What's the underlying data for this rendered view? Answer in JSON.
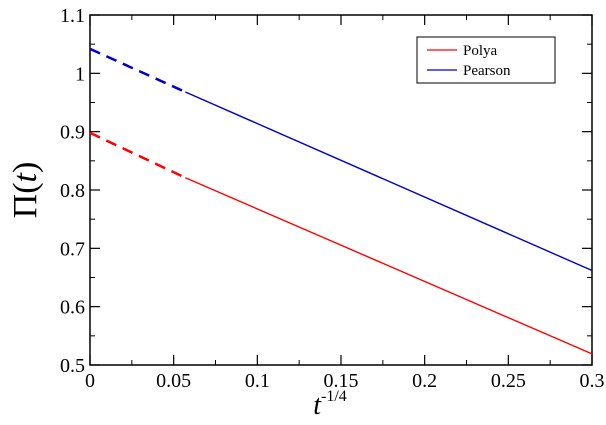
{
  "chart_data": {
    "type": "line",
    "xlabel_base": "t",
    "xlabel_sup": "-1/4",
    "ylabel_pi": "Π",
    "ylabel_open": "(",
    "ylabel_var": "t",
    "ylabel_close": ")",
    "xlim": [
      0,
      0.3
    ],
    "ylim": [
      0.5,
      1.1
    ],
    "xticks": [
      0,
      0.05,
      0.1,
      0.15,
      0.2,
      0.25,
      0.3
    ],
    "xtick_labels": [
      "0",
      "0.05",
      "0.1",
      "0.15",
      "0.2",
      "0.25",
      "0.3"
    ],
    "yticks": [
      0.5,
      0.6,
      0.7,
      0.8,
      0.9,
      1.0,
      1.1
    ],
    "ytick_labels": [
      "0.5",
      "0.6",
      "0.7",
      "0.8",
      "0.9",
      "1",
      "1.1"
    ],
    "grid": false,
    "legend_position": "top-right",
    "series": [
      {
        "name": "Polya",
        "color": "#ff0000",
        "solid": {
          "x": [
            0.057,
            0.3
          ],
          "y": [
            0.821,
            0.519
          ]
        },
        "extrapolation": {
          "x": [
            0,
            0.057
          ],
          "y": [
            0.898,
            0.821
          ]
        }
      },
      {
        "name": "Pearson",
        "color": "#0000cc",
        "solid": {
          "x": [
            0.057,
            0.3
          ],
          "y": [
            0.968,
            0.662
          ]
        },
        "extrapolation": {
          "x": [
            0,
            0.057
          ],
          "y": [
            1.042,
            0.968
          ]
        }
      }
    ]
  }
}
